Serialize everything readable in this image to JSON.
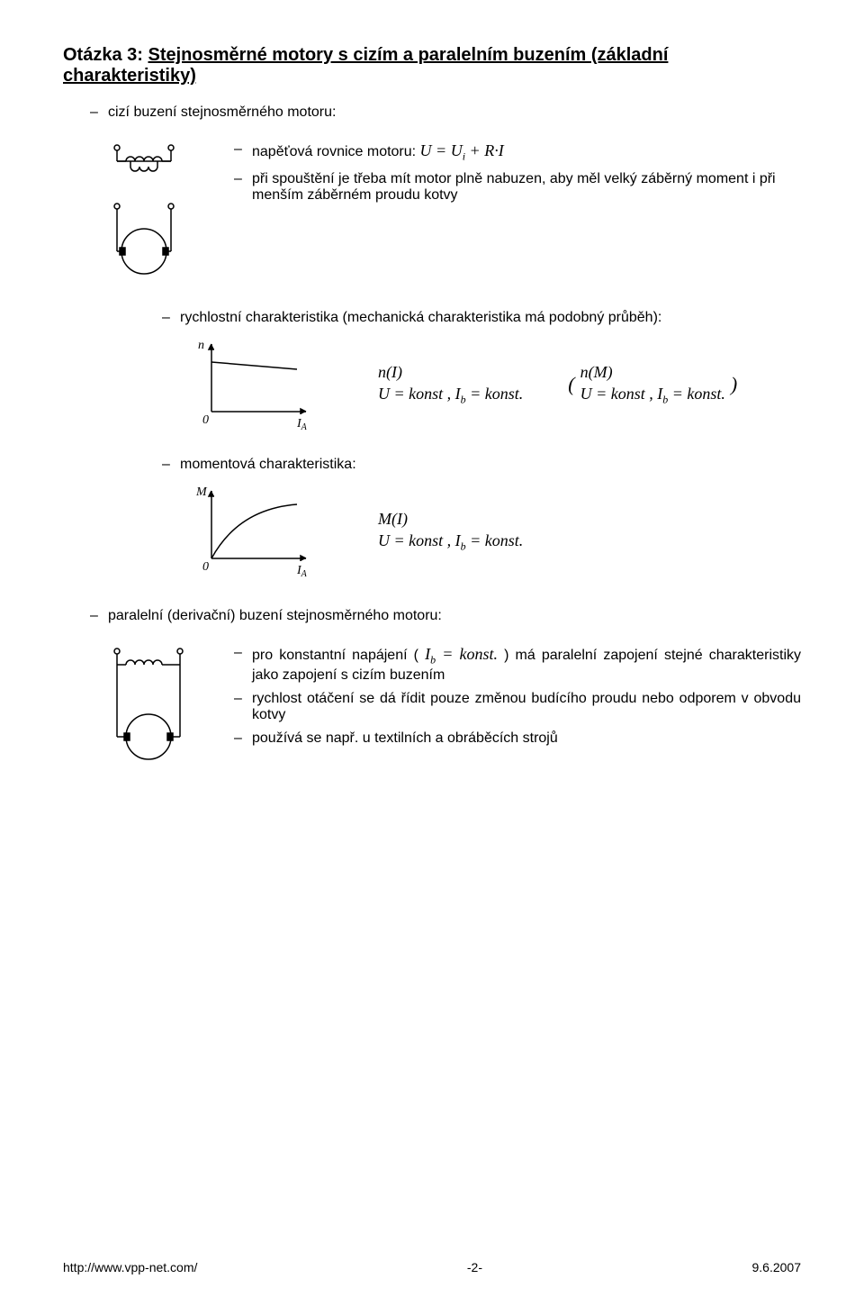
{
  "title_prefix": "Otázka 3: ",
  "title_main": "Stejnosměrné motory s cizím a paralelním buzením (základní charakteristiky)",
  "b1": "cizí buzení stejnosměrného motoru:",
  "b1_1_text": "napěťová rovnice motoru: ",
  "b1_1_formula": "U = U<span class=\"sub\">i</span> + R·I",
  "b1_2": "při spouštění je třeba mít motor plně nabuzen, aby měl velký záběrný moment i při menším záběrném proudu kotvy",
  "b1_3": "rychlostní charakteristika (mechanická charakteristika má podobný průběh):",
  "char1_top": "n(I)",
  "char1_bot": "U = konst , I<span class=\"sub\">b</span> = konst.",
  "char1b_top": "n(M)",
  "char1b_bot": "U = konst , I<span class=\"sub\">b</span> = konst.",
  "b1_4": "momentová charakteristika:",
  "char2_top": "M(I)",
  "char2_bot": "U = konst , I<span class=\"sub\">b</span> = konst.",
  "b2": "paralelní (derivační) buzení stejnosměrného motoru:",
  "b2_1_pre": "pro konstantní napájení ( ",
  "b2_1_mid": "I<span class=\"sub\">b</span> = konst.",
  "b2_1_post": " ) má paralelní zapojení stejné charakteristiky jako zapojení s cizím buzením",
  "b2_2": "rychlost otáčení se dá řídit pouze změnou budícího proudu nebo odporem v obvodu kotvy",
  "b2_3": "používá se např. u textilních a obráběcích strojů",
  "footer_left": "http://www.vpp-net.com/",
  "footer_center": "-2-",
  "footer_right": "9.6.2007",
  "colors": {
    "text": "#000000",
    "background": "#ffffff",
    "stroke": "#000000"
  }
}
